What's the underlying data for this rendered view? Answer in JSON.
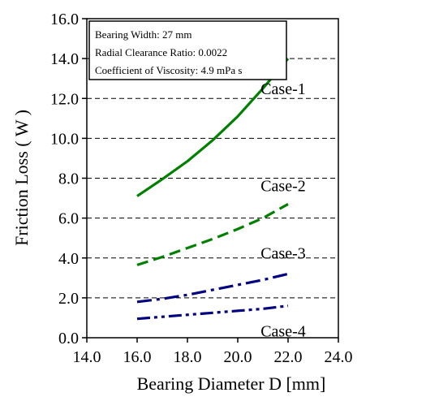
{
  "chart_data": {
    "type": "line",
    "title": "",
    "xlabel": "Bearing Diameter D [mm]",
    "ylabel": "Friction Loss ( W )",
    "xlim": [
      14.0,
      24.0
    ],
    "ylim": [
      0.0,
      16.0
    ],
    "x_ticks": [
      "14.0",
      "16.0",
      "18.0",
      "20.0",
      "22.0",
      "24.0"
    ],
    "y_ticks": [
      "0.0",
      "2.0",
      "4.0",
      "6.0",
      "8.0",
      "10.0",
      "12.0",
      "14.0",
      "16.0"
    ],
    "grid": "horizontal dashed",
    "x": [
      16.0,
      17.0,
      18.0,
      19.0,
      20.0,
      21.0,
      22.0
    ],
    "series": [
      {
        "name": "Case-1",
        "color": "#008000",
        "dash": "solid",
        "values": [
          7.1,
          7.95,
          8.85,
          9.9,
          11.1,
          12.5,
          14.0
        ]
      },
      {
        "name": "Case-2",
        "color": "#008000",
        "dash": "dashed",
        "values": [
          3.65,
          4.05,
          4.5,
          4.95,
          5.45,
          6.0,
          6.7
        ]
      },
      {
        "name": "Case-3",
        "color": "#000080",
        "dash": "dash-dot",
        "values": [
          1.8,
          1.95,
          2.15,
          2.4,
          2.65,
          2.9,
          3.2
        ]
      },
      {
        "name": "Case-4",
        "color": "#000080",
        "dash": "dash-dot-dot",
        "values": [
          0.95,
          1.05,
          1.15,
          1.25,
          1.35,
          1.45,
          1.6
        ]
      }
    ],
    "annotation_box": [
      "Bearing Width: 27 mm",
      "Radial Clearance Ratio: 0.0022",
      "Coefficient of Viscosity: 4.9 mPa s"
    ]
  }
}
